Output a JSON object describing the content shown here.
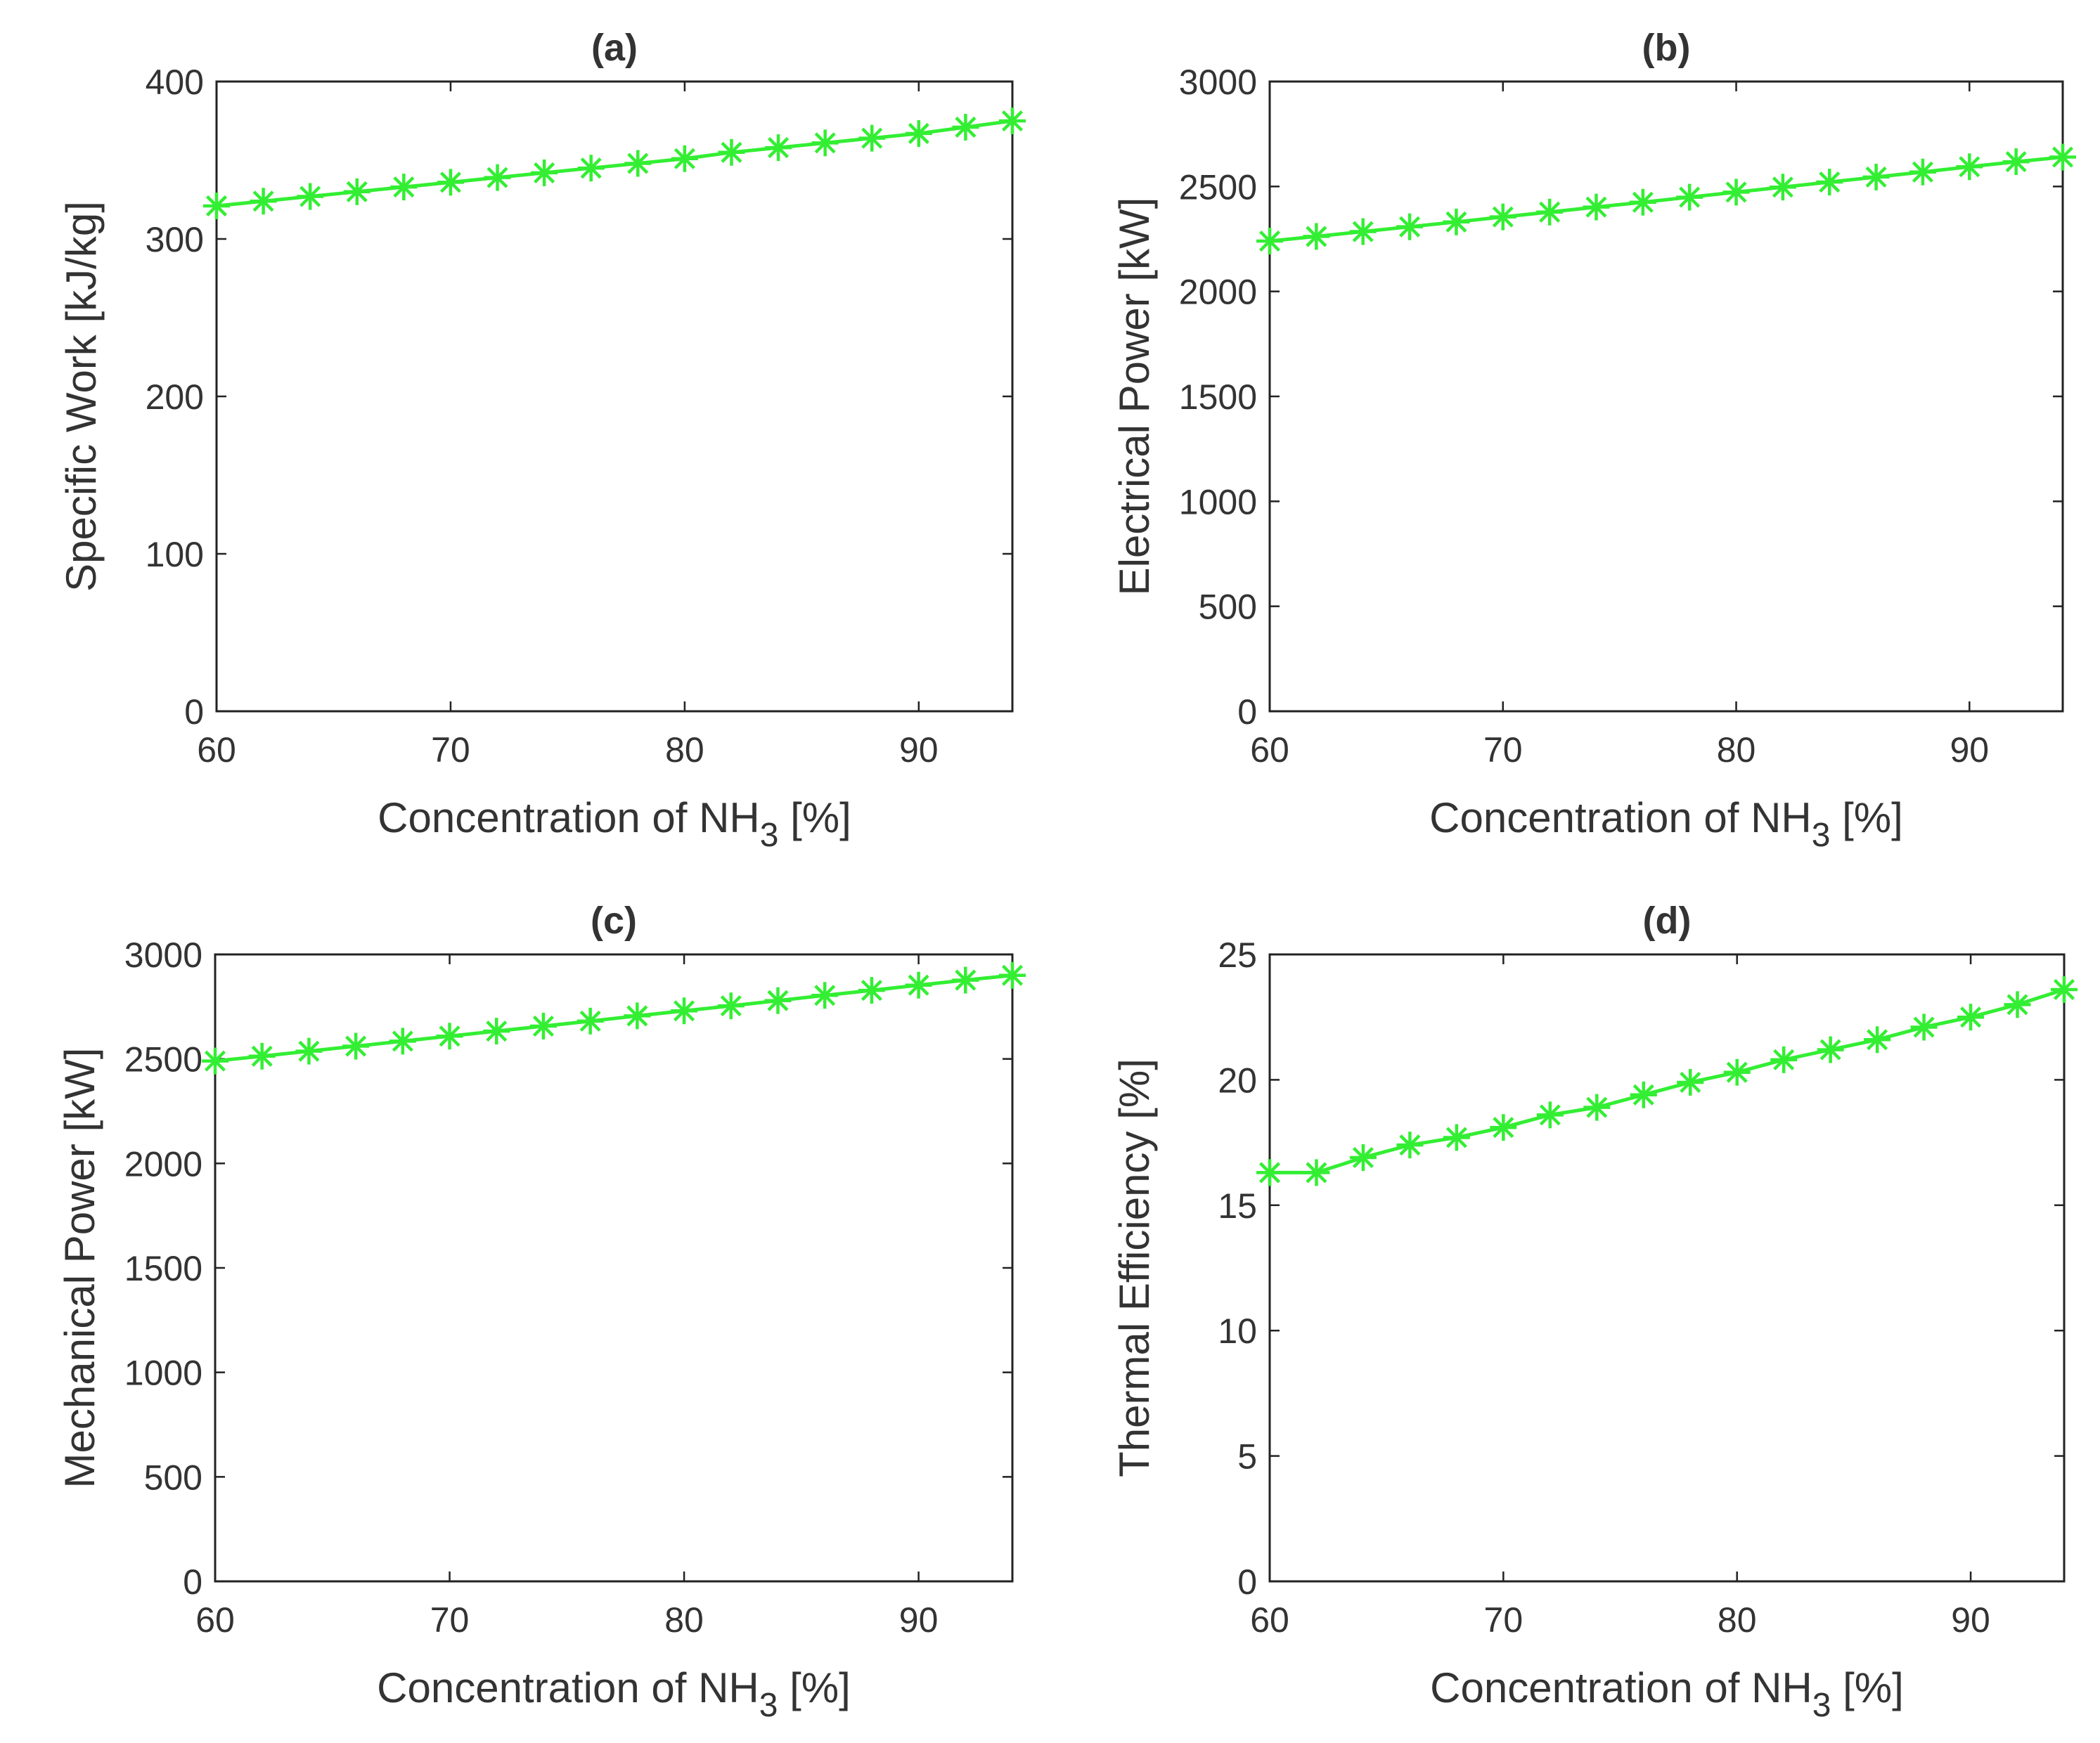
{
  "chart_data": [
    {
      "type": "line",
      "title": "(a)",
      "xlabel": "Concentration of NH",
      "xlabel_subscript": "3",
      "xlabel_suffix": " [%]",
      "ylabel": "Specific Work [kJ/kg]",
      "xlim": [
        60,
        94
      ],
      "ylim": [
        0,
        400
      ],
      "xticks": [
        60,
        70,
        80,
        90
      ],
      "yticks": [
        0,
        100,
        200,
        300,
        400
      ],
      "series": [
        {
          "name": "Specific Work",
          "color": "#33ee33",
          "marker": "asterisk",
          "x": [
            60,
            62,
            64,
            66,
            68,
            70,
            72,
            74,
            76,
            78,
            80,
            82,
            84,
            86,
            88,
            90,
            92,
            94
          ],
          "y": [
            321,
            324,
            327,
            330,
            333,
            336,
            339,
            342,
            345,
            348,
            351,
            355,
            358,
            361,
            364,
            367,
            371,
            375
          ]
        }
      ]
    },
    {
      "type": "line",
      "title": "(b)",
      "xlabel": "Concentration of NH",
      "xlabel_subscript": "3",
      "xlabel_suffix": " [%]",
      "ylabel": "Electrical Power [kW]",
      "xlim": [
        60,
        94
      ],
      "ylim": [
        0,
        3000
      ],
      "xticks": [
        60,
        70,
        80,
        90
      ],
      "yticks": [
        0,
        500,
        1000,
        1500,
        2000,
        2500,
        3000
      ],
      "series": [
        {
          "name": "Electrical Power",
          "color": "#33ee33",
          "marker": "asterisk",
          "x": [
            60,
            62,
            64,
            66,
            68,
            70,
            72,
            74,
            76,
            78,
            80,
            82,
            84,
            86,
            88,
            90,
            92,
            94
          ],
          "y": [
            2240,
            2262,
            2285,
            2308,
            2331,
            2355,
            2378,
            2402,
            2425,
            2449,
            2473,
            2497,
            2521,
            2545,
            2569,
            2594,
            2618,
            2640
          ]
        }
      ]
    },
    {
      "type": "line",
      "title": "(c)",
      "xlabel": "Concentration of NH",
      "xlabel_subscript": "3",
      "xlabel_suffix": " [%]",
      "ylabel": "Mechanical Power [kW]",
      "xlim": [
        60,
        94
      ],
      "ylim": [
        0,
        3000
      ],
      "xticks": [
        60,
        70,
        80,
        90
      ],
      "yticks": [
        0,
        500,
        1000,
        1500,
        2000,
        2500,
        3000
      ],
      "series": [
        {
          "name": "Mechanical Power",
          "color": "#33ee33",
          "marker": "asterisk",
          "x": [
            60,
            62,
            64,
            66,
            68,
            70,
            72,
            74,
            76,
            78,
            80,
            82,
            84,
            86,
            88,
            90,
            92,
            94
          ],
          "y": [
            2490,
            2513,
            2537,
            2561,
            2585,
            2609,
            2633,
            2657,
            2681,
            2706,
            2730,
            2754,
            2779,
            2804,
            2828,
            2853,
            2877,
            2900
          ]
        }
      ]
    },
    {
      "type": "line",
      "title": "(d)",
      "xlabel": "Concentration of NH",
      "xlabel_subscript": "3",
      "xlabel_suffix": " [%]",
      "ylabel": "Thermal Efficiency [%]",
      "xlim": [
        60,
        94
      ],
      "ylim": [
        0,
        25
      ],
      "xticks": [
        60,
        70,
        80,
        90
      ],
      "yticks": [
        0,
        5,
        10,
        15,
        20,
        25
      ],
      "series": [
        {
          "name": "Thermal Efficiency",
          "color": "#33ee33",
          "marker": "asterisk",
          "x": [
            60,
            62,
            64,
            66,
            68,
            70,
            72,
            74,
            76,
            78,
            80,
            82,
            84,
            86,
            88,
            90,
            92,
            94
          ],
          "y": [
            16.3,
            16.3,
            16.9,
            17.4,
            17.7,
            18.1,
            18.6,
            18.9,
            19.4,
            19.9,
            20.3,
            20.8,
            21.2,
            21.6,
            22.1,
            22.5,
            23.0,
            23.6
          ]
        }
      ]
    }
  ]
}
